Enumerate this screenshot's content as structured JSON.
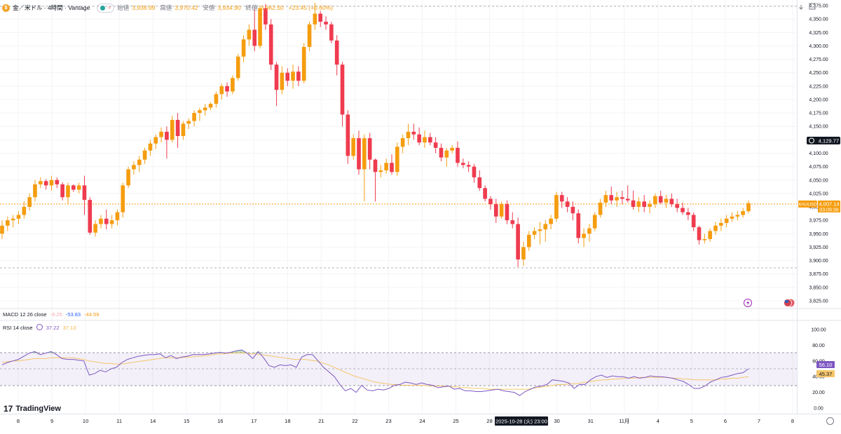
{
  "header": {
    "symbol": "金／米ドル · 4時間 · Vantage",
    "coin_icon": "gold-coin-icon",
    "open_label": "始値",
    "open": "3,938.99",
    "high_label": "高値",
    "high": "3,970.42",
    "low_label": "安値",
    "low": "3,934.90",
    "close_label": "終値",
    "close": "3,962.50",
    "change": "+23.45 (+0.60%)"
  },
  "colors": {
    "up": "#f59d0f",
    "down": "#ef3b4f",
    "rsi": "#7e57c2",
    "rsi_ma": "#f5c56b",
    "accent": "#f59d0f"
  },
  "price_axis": {
    "ticks": [
      "4,375.00",
      "4,350.00",
      "4,325.00",
      "4,300.00",
      "4,275.00",
      "4,250.00",
      "4,225.00",
      "4,200.00",
      "4,175.00",
      "4,150.00",
      "4,125.00",
      "4,100.00",
      "4,075.00",
      "4,050.00",
      "4,025.00",
      "4,000.00",
      "3,975.00",
      "3,950.00",
      "3,925.00",
      "3,900.00",
      "3,875.00",
      "3,850.00",
      "3,825.00"
    ],
    "crosshair_label": "4,129.77",
    "last_symbol": "XAUUSD",
    "last_price": "4,007.14",
    "countdown": "03:09:39"
  },
  "macd": {
    "label": "MACD 12 26 close",
    "v1": "-9.25",
    "v2": "-53.83",
    "v3": "-44.59"
  },
  "rsi": {
    "label": "RSI 14 close",
    "v1": "37.22",
    "v2": "37.13",
    "axis_ticks": [
      "100.00",
      "80.00",
      "60.00",
      "40.00",
      "20.00",
      "0.00"
    ],
    "badge_rsi": "56.10",
    "badge_ma": "45.37"
  },
  "time_axis": {
    "labels": [
      "8",
      "9",
      "10",
      "11",
      "14",
      "15",
      "16",
      "17",
      "18",
      "21",
      "22",
      "23",
      "24",
      "25",
      "28",
      "29",
      "30",
      "31",
      "11月",
      "4",
      "5",
      "6",
      "7",
      "8"
    ],
    "crosshair": "2025-10-28 (火)   23:00"
  },
  "brand": "TradingView",
  "chart_data": {
    "type": "candlestick",
    "title": "金／米ドル · 4時間 · Vantage",
    "ylim": [
      3815,
      4385
    ],
    "candles": [
      [
        3950,
        3975,
        3940,
        3965
      ],
      [
        3965,
        3982,
        3955,
        3975
      ],
      [
        3975,
        3985,
        3962,
        3978
      ],
      [
        3978,
        3992,
        3968,
        3985
      ],
      [
        3985,
        4010,
        3978,
        4000
      ],
      [
        4000,
        4025,
        3993,
        4018
      ],
      [
        4018,
        4050,
        4010,
        4042
      ],
      [
        4042,
        4055,
        4035,
        4048
      ],
      [
        4048,
        4052,
        4032,
        4040
      ],
      [
        4040,
        4058,
        4030,
        4050
      ],
      [
        4050,
        4055,
        4035,
        4042
      ],
      [
        4042,
        4046,
        4012,
        4018
      ],
      [
        4018,
        4045,
        4005,
        4040
      ],
      [
        4040,
        4042,
        4028,
        4032
      ],
      [
        4032,
        4045,
        4025,
        4040
      ],
      [
        4040,
        4058,
        3985,
        4013
      ],
      [
        4013,
        4018,
        3948,
        3952
      ],
      [
        3952,
        3975,
        3945,
        3968
      ],
      [
        3968,
        3985,
        3960,
        3978
      ],
      [
        3978,
        3995,
        3958,
        3968
      ],
      [
        3968,
        3985,
        3960,
        3975
      ],
      [
        3975,
        3995,
        3965,
        3990
      ],
      [
        3990,
        4045,
        3980,
        4040
      ],
      [
        4040,
        4075,
        4035,
        4070
      ],
      [
        4070,
        4085,
        4060,
        4078
      ],
      [
        4078,
        4095,
        4065,
        4088
      ],
      [
        4088,
        4110,
        4080,
        4105
      ],
      [
        4105,
        4125,
        4095,
        4118
      ],
      [
        4118,
        4135,
        4108,
        4130
      ],
      [
        4130,
        4148,
        4120,
        4140
      ],
      [
        4140,
        4150,
        4090,
        4125
      ],
      [
        4125,
        4170,
        4120,
        4162
      ],
      [
        4162,
        4175,
        4110,
        4132
      ],
      [
        4132,
        4160,
        4125,
        4155
      ],
      [
        4155,
        4165,
        4145,
        4160
      ],
      [
        4160,
        4180,
        4150,
        4175
      ],
      [
        4175,
        4185,
        4160,
        4180
      ],
      [
        4180,
        4192,
        4170,
        4185
      ],
      [
        4185,
        4195,
        4180,
        4192
      ],
      [
        4192,
        4215,
        4185,
        4210
      ],
      [
        4210,
        4230,
        4200,
        4225
      ],
      [
        4225,
        4232,
        4205,
        4215
      ],
      [
        4215,
        4245,
        4210,
        4240
      ],
      [
        4240,
        4285,
        4235,
        4280
      ],
      [
        4280,
        4320,
        4270,
        4312
      ],
      [
        4312,
        4340,
        4300,
        4330
      ],
      [
        4330,
        4368,
        4290,
        4300
      ],
      [
        4300,
        4375,
        4295,
        4370
      ],
      [
        4370,
        4378,
        4330,
        4340
      ],
      [
        4340,
        4350,
        4255,
        4265
      ],
      [
        4265,
        4270,
        4188,
        4218
      ],
      [
        4218,
        4262,
        4210,
        4250
      ],
      [
        4250,
        4258,
        4225,
        4235
      ],
      [
        4235,
        4265,
        4220,
        4252
      ],
      [
        4252,
        4262,
        4225,
        4235
      ],
      [
        4235,
        4305,
        4230,
        4298
      ],
      [
        4298,
        4345,
        4290,
        4340
      ],
      [
        4340,
        4380,
        4330,
        4360
      ],
      [
        4360,
        4365,
        4335,
        4345
      ],
      [
        4345,
        4355,
        4330,
        4340
      ],
      [
        4340,
        4345,
        4305,
        4310
      ],
      [
        4310,
        4320,
        4245,
        4265
      ],
      [
        4265,
        4270,
        4150,
        4172
      ],
      [
        4172,
        4180,
        4080,
        4095
      ],
      [
        4095,
        4135,
        4088,
        4128
      ],
      [
        4128,
        4142,
        4060,
        4070
      ],
      [
        4070,
        4135,
        4010,
        4128
      ],
      [
        4128,
        4138,
        4070,
        4088
      ],
      [
        4088,
        4090,
        4010,
        4065
      ],
      [
        4065,
        4078,
        4055,
        4068
      ],
      [
        4068,
        4090,
        4062,
        4082
      ],
      [
        4082,
        4098,
        4060,
        4065
      ],
      [
        4065,
        4120,
        4058,
        4112
      ],
      [
        4112,
        4135,
        4100,
        4128
      ],
      [
        4128,
        4155,
        4115,
        4140
      ],
      [
        4140,
        4155,
        4125,
        4135
      ],
      [
        4135,
        4148,
        4115,
        4120
      ],
      [
        4120,
        4142,
        4110,
        4130
      ],
      [
        4130,
        4138,
        4115,
        4120
      ],
      [
        4120,
        4130,
        4100,
        4110
      ],
      [
        4110,
        4118,
        4085,
        4092
      ],
      [
        4092,
        4110,
        4075,
        4105
      ],
      [
        4105,
        4115,
        4100,
        4110
      ],
      [
        4110,
        4122,
        4075,
        4082
      ],
      [
        4082,
        4090,
        4072,
        4078
      ],
      [
        4078,
        4085,
        4065,
        4075
      ],
      [
        4075,
        4080,
        4045,
        4055
      ],
      [
        4055,
        4068,
        4030,
        4035
      ],
      [
        4035,
        4040,
        4010,
        4015
      ],
      [
        4015,
        4020,
        3995,
        4005
      ],
      [
        4005,
        4015,
        3970,
        3982
      ],
      [
        3982,
        4010,
        3978,
        4005
      ],
      [
        4005,
        4012,
        3968,
        3975
      ],
      [
        3975,
        3990,
        3960,
        3968
      ],
      [
        3968,
        3980,
        3888,
        3902
      ],
      [
        3902,
        3935,
        3890,
        3925
      ],
      [
        3925,
        3955,
        3918,
        3948
      ],
      [
        3948,
        3962,
        3940,
        3955
      ],
      [
        3955,
        3972,
        3930,
        3958
      ],
      [
        3958,
        3975,
        3935,
        3968
      ],
      [
        3968,
        3985,
        3958,
        3978
      ],
      [
        3978,
        4028,
        3972,
        4022
      ],
      [
        4022,
        4028,
        3998,
        4010
      ],
      [
        4010,
        4018,
        3990,
        4000
      ],
      [
        4000,
        4010,
        3975,
        3988
      ],
      [
        3988,
        3995,
        3932,
        3942
      ],
      [
        3942,
        3960,
        3925,
        3950
      ],
      [
        3950,
        3968,
        3935,
        3960
      ],
      [
        3960,
        3990,
        3955,
        3985
      ],
      [
        3985,
        4015,
        3980,
        4008
      ],
      [
        4008,
        4030,
        4000,
        4022
      ],
      [
        4022,
        4038,
        4005,
        4012
      ],
      [
        4012,
        4028,
        4000,
        4018
      ],
      [
        4018,
        4030,
        4005,
        4015
      ],
      [
        4015,
        4040,
        4008,
        4012
      ],
      [
        4012,
        4030,
        3995,
        4000
      ],
      [
        4000,
        4018,
        3990,
        4010
      ],
      [
        4010,
        4022,
        3990,
        4000
      ],
      [
        4000,
        4012,
        3988,
        4005
      ],
      [
        4005,
        4025,
        3998,
        4020
      ],
      [
        4020,
        4030,
        4005,
        4008
      ],
      [
        4008,
        4022,
        3998,
        4015
      ],
      [
        4015,
        4025,
        4000,
        4005
      ],
      [
        4005,
        4015,
        3990,
        3998
      ],
      [
        3998,
        4008,
        3985,
        3990
      ],
      [
        3990,
        3998,
        3975,
        3985
      ],
      [
        3985,
        3990,
        3955,
        3962
      ],
      [
        3962,
        3965,
        3930,
        3938
      ],
      [
        3938,
        3950,
        3932,
        3940
      ],
      [
        3940,
        3960,
        3935,
        3955
      ],
      [
        3955,
        3972,
        3948,
        3965
      ],
      [
        3965,
        3978,
        3955,
        3970
      ],
      [
        3970,
        3985,
        3962,
        3978
      ],
      [
        3978,
        3990,
        3972,
        3982
      ],
      [
        3982,
        3992,
        3975,
        3985
      ],
      [
        3985,
        3998,
        3980,
        3992
      ],
      [
        3992,
        4012,
        3988,
        4007
      ]
    ],
    "rsi_values": [
      55,
      58,
      60,
      62,
      66,
      70,
      72,
      68,
      70,
      72,
      68,
      63,
      62,
      62,
      61,
      60,
      42,
      44,
      48,
      46,
      50,
      52,
      58,
      62,
      64,
      66,
      67,
      68,
      68,
      69,
      64,
      67,
      63,
      65,
      66,
      68,
      68,
      68,
      69,
      70,
      71,
      70,
      71,
      73,
      74,
      70,
      63,
      72,
      64,
      54,
      52,
      55,
      54,
      55,
      52,
      65,
      68,
      68,
      60,
      52,
      46,
      40,
      30,
      22,
      25,
      20,
      29,
      23,
      22,
      24,
      23,
      25,
      29,
      30,
      33,
      32,
      30,
      32,
      30,
      29,
      26,
      27,
      28,
      24,
      25,
      22,
      22,
      21,
      21,
      22,
      23,
      24,
      22,
      21,
      20,
      16,
      21,
      24,
      27,
      28,
      30,
      36,
      35,
      34,
      32,
      25,
      30,
      30,
      36,
      40,
      42,
      39,
      41,
      40,
      40,
      38,
      40,
      38,
      39,
      41,
      40,
      40,
      39,
      38,
      36,
      34,
      30,
      25,
      25,
      28,
      33,
      36,
      39,
      40,
      42,
      44,
      45,
      50
    ],
    "rsi_ma_values": [
      58,
      59,
      60,
      60,
      61,
      62,
      63,
      63,
      63,
      64,
      64,
      64,
      64,
      64,
      63,
      62,
      60,
      59,
      58,
      57,
      57,
      56,
      56,
      57,
      58,
      59,
      60,
      61,
      62,
      63,
      64,
      64,
      64,
      64,
      65,
      65,
      66,
      66,
      67,
      68,
      69,
      69,
      70,
      70,
      70,
      70,
      69,
      69,
      68,
      67,
      66,
      65,
      64,
      63,
      62,
      62,
      62,
      61,
      60,
      58,
      56,
      53,
      50,
      47,
      44,
      41,
      39,
      37,
      35,
      33,
      32,
      31,
      30,
      30,
      29,
      29,
      29,
      29,
      29,
      28,
      28,
      28,
      28,
      27,
      27,
      26,
      26,
      25,
      25,
      25,
      24,
      24,
      24,
      24,
      24,
      24,
      24,
      24,
      25,
      26,
      27,
      28,
      29,
      30,
      30,
      31,
      31,
      32,
      33,
      34,
      35,
      36,
      36,
      37,
      37,
      38,
      38,
      38,
      39,
      39,
      39,
      39,
      39,
      39,
      38,
      38,
      37,
      37,
      36,
      36,
      36,
      36,
      36,
      37,
      37,
      38,
      38,
      39,
      40
    ],
    "rsi_overbought": 70,
    "rsi_oversold": 30,
    "support_level": 3888
  }
}
